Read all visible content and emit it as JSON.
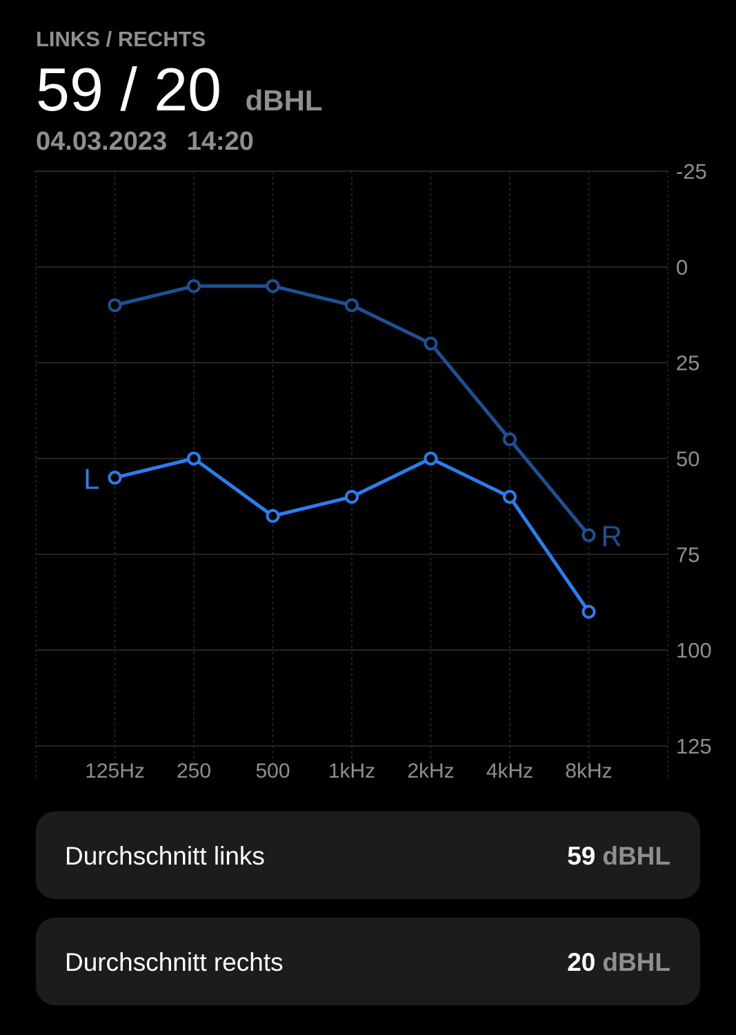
{
  "header": {
    "label": "LINKS / RECHTS",
    "value": "59 / 20",
    "unit": "dBHL",
    "date": "04.03.2023",
    "time": "14:20"
  },
  "chart_data": {
    "type": "line",
    "categories": [
      "125Hz",
      "250",
      "500",
      "1kHz",
      "2kHz",
      "4kHz",
      "8kHz"
    ],
    "series": [
      {
        "name": "L",
        "color": "#2a7ff0",
        "values": [
          55,
          50,
          65,
          60,
          50,
          60,
          90
        ]
      },
      {
        "name": "R",
        "color": "#1d5196",
        "values": [
          10,
          5,
          5,
          10,
          20,
          45,
          70
        ]
      }
    ],
    "ylim": [
      125,
      -25
    ],
    "yticks": [
      -25,
      0,
      25,
      50,
      75,
      100,
      125
    ],
    "grid": true
  },
  "summary": [
    {
      "label": "Durchschnitt links",
      "value": 59,
      "unit": "dBHL"
    },
    {
      "label": "Durchschnitt rechts",
      "value": 20,
      "unit": "dBHL"
    }
  ]
}
